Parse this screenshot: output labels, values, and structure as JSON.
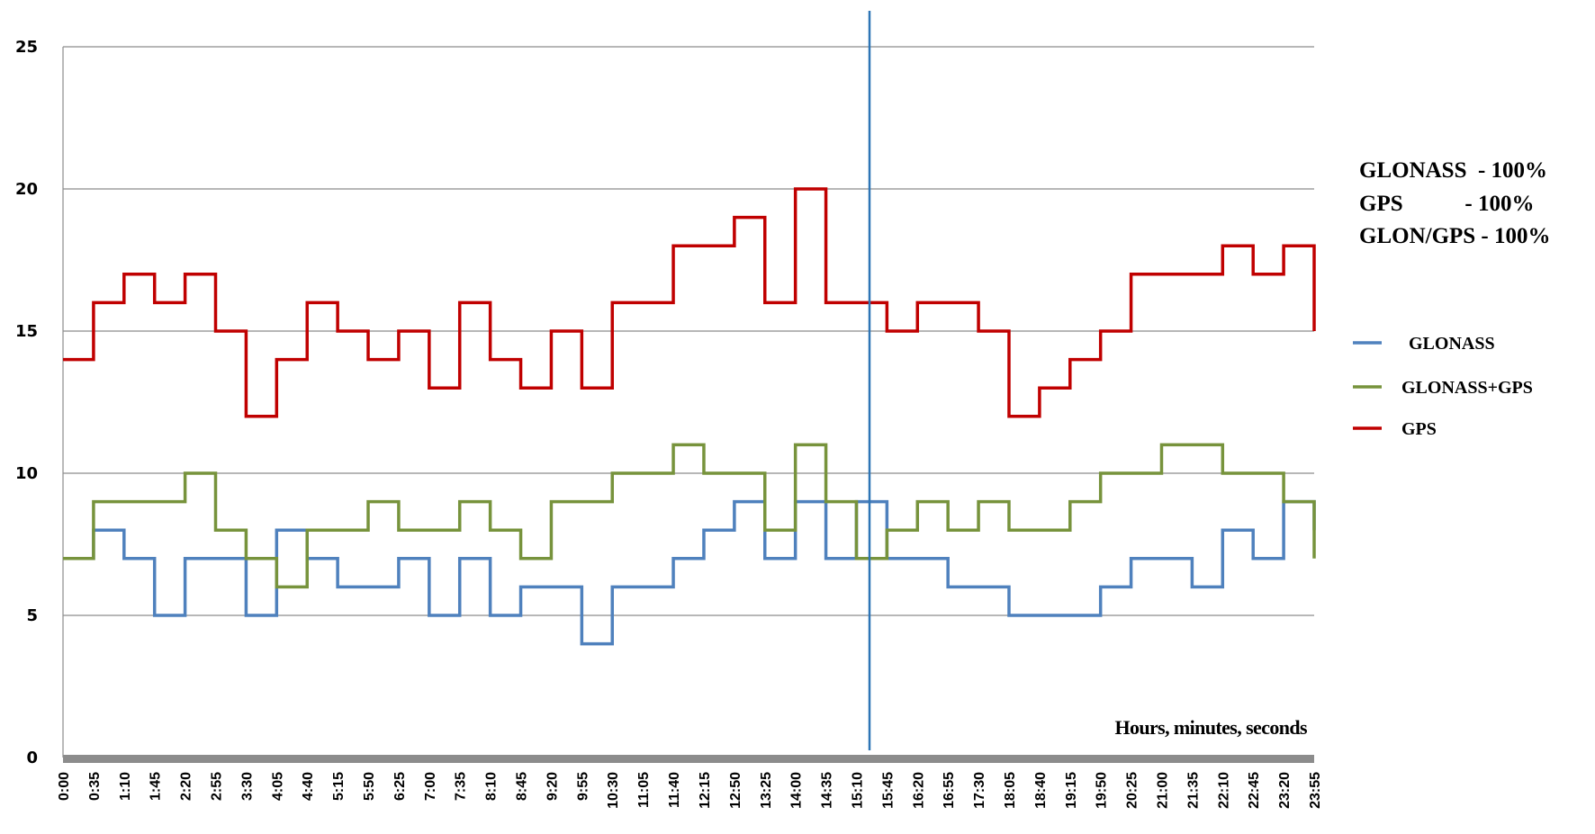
{
  "chart_data": {
    "type": "line",
    "title": "",
    "xlabel": "Hours, minutes, seconds",
    "ylabel": "",
    "ylim": [
      0,
      25
    ],
    "yticks": [
      "0",
      "5",
      "10",
      "15",
      "20",
      "25"
    ],
    "grid": true,
    "legend_position": "right",
    "x": [
      "0:00",
      "0:35",
      "1:10",
      "1:45",
      "2:20",
      "2:55",
      "3:30",
      "4:05",
      "4:40",
      "5:15",
      "5:50",
      "6:25",
      "7:00",
      "7:35",
      "8:10",
      "8:45",
      "9:20",
      "9:55",
      "10:30",
      "11:05",
      "11:40",
      "12:15",
      "12:50",
      "13:25",
      "14:00",
      "14:35",
      "15:10",
      "15:45",
      "16:20",
      "16:55",
      "17:30",
      "18:05",
      "18:40",
      "19:15",
      "19:50",
      "20:25",
      "21:00",
      "21:35",
      "22:10",
      "22:45",
      "23:20",
      "23:55"
    ],
    "marker": {
      "x": "15:25",
      "color": "#2e75b6"
    },
    "series": [
      {
        "name": "GLONASS",
        "color": "#4f81bd",
        "values": [
          7,
          8,
          7,
          5,
          7,
          7,
          5,
          8,
          7,
          6,
          6,
          7,
          5,
          7,
          5,
          6,
          6,
          4,
          6,
          6,
          7,
          8,
          9,
          7,
          9,
          7,
          9,
          7,
          7,
          6,
          6,
          5,
          5,
          5,
          6,
          7,
          7,
          6,
          8,
          7,
          9,
          8
        ]
      },
      {
        "name": "GLONASS+GPS",
        "color": "#77933c",
        "values": [
          7,
          9,
          9,
          9,
          10,
          8,
          7,
          6,
          8,
          8,
          9,
          8,
          8,
          9,
          8,
          7,
          9,
          9,
          10,
          10,
          11,
          10,
          10,
          8,
          11,
          9,
          7,
          8,
          9,
          8,
          9,
          8,
          8,
          9,
          10,
          10,
          11,
          11,
          10,
          10,
          9,
          7
        ]
      },
      {
        "name": "GPS",
        "color": "#c00000",
        "values": [
          14,
          16,
          17,
          16,
          17,
          15,
          12,
          14,
          16,
          15,
          14,
          15,
          13,
          16,
          14,
          13,
          15,
          13,
          16,
          16,
          18,
          18,
          19,
          16,
          20,
          16,
          16,
          15,
          16,
          16,
          15,
          12,
          13,
          14,
          15,
          17,
          17,
          17,
          18,
          17,
          18,
          15
        ]
      }
    ]
  },
  "availability": {
    "lines": [
      "GLONASS  - 100%",
      "GPS           - 100%",
      "GLON/GPS - 100%"
    ]
  }
}
